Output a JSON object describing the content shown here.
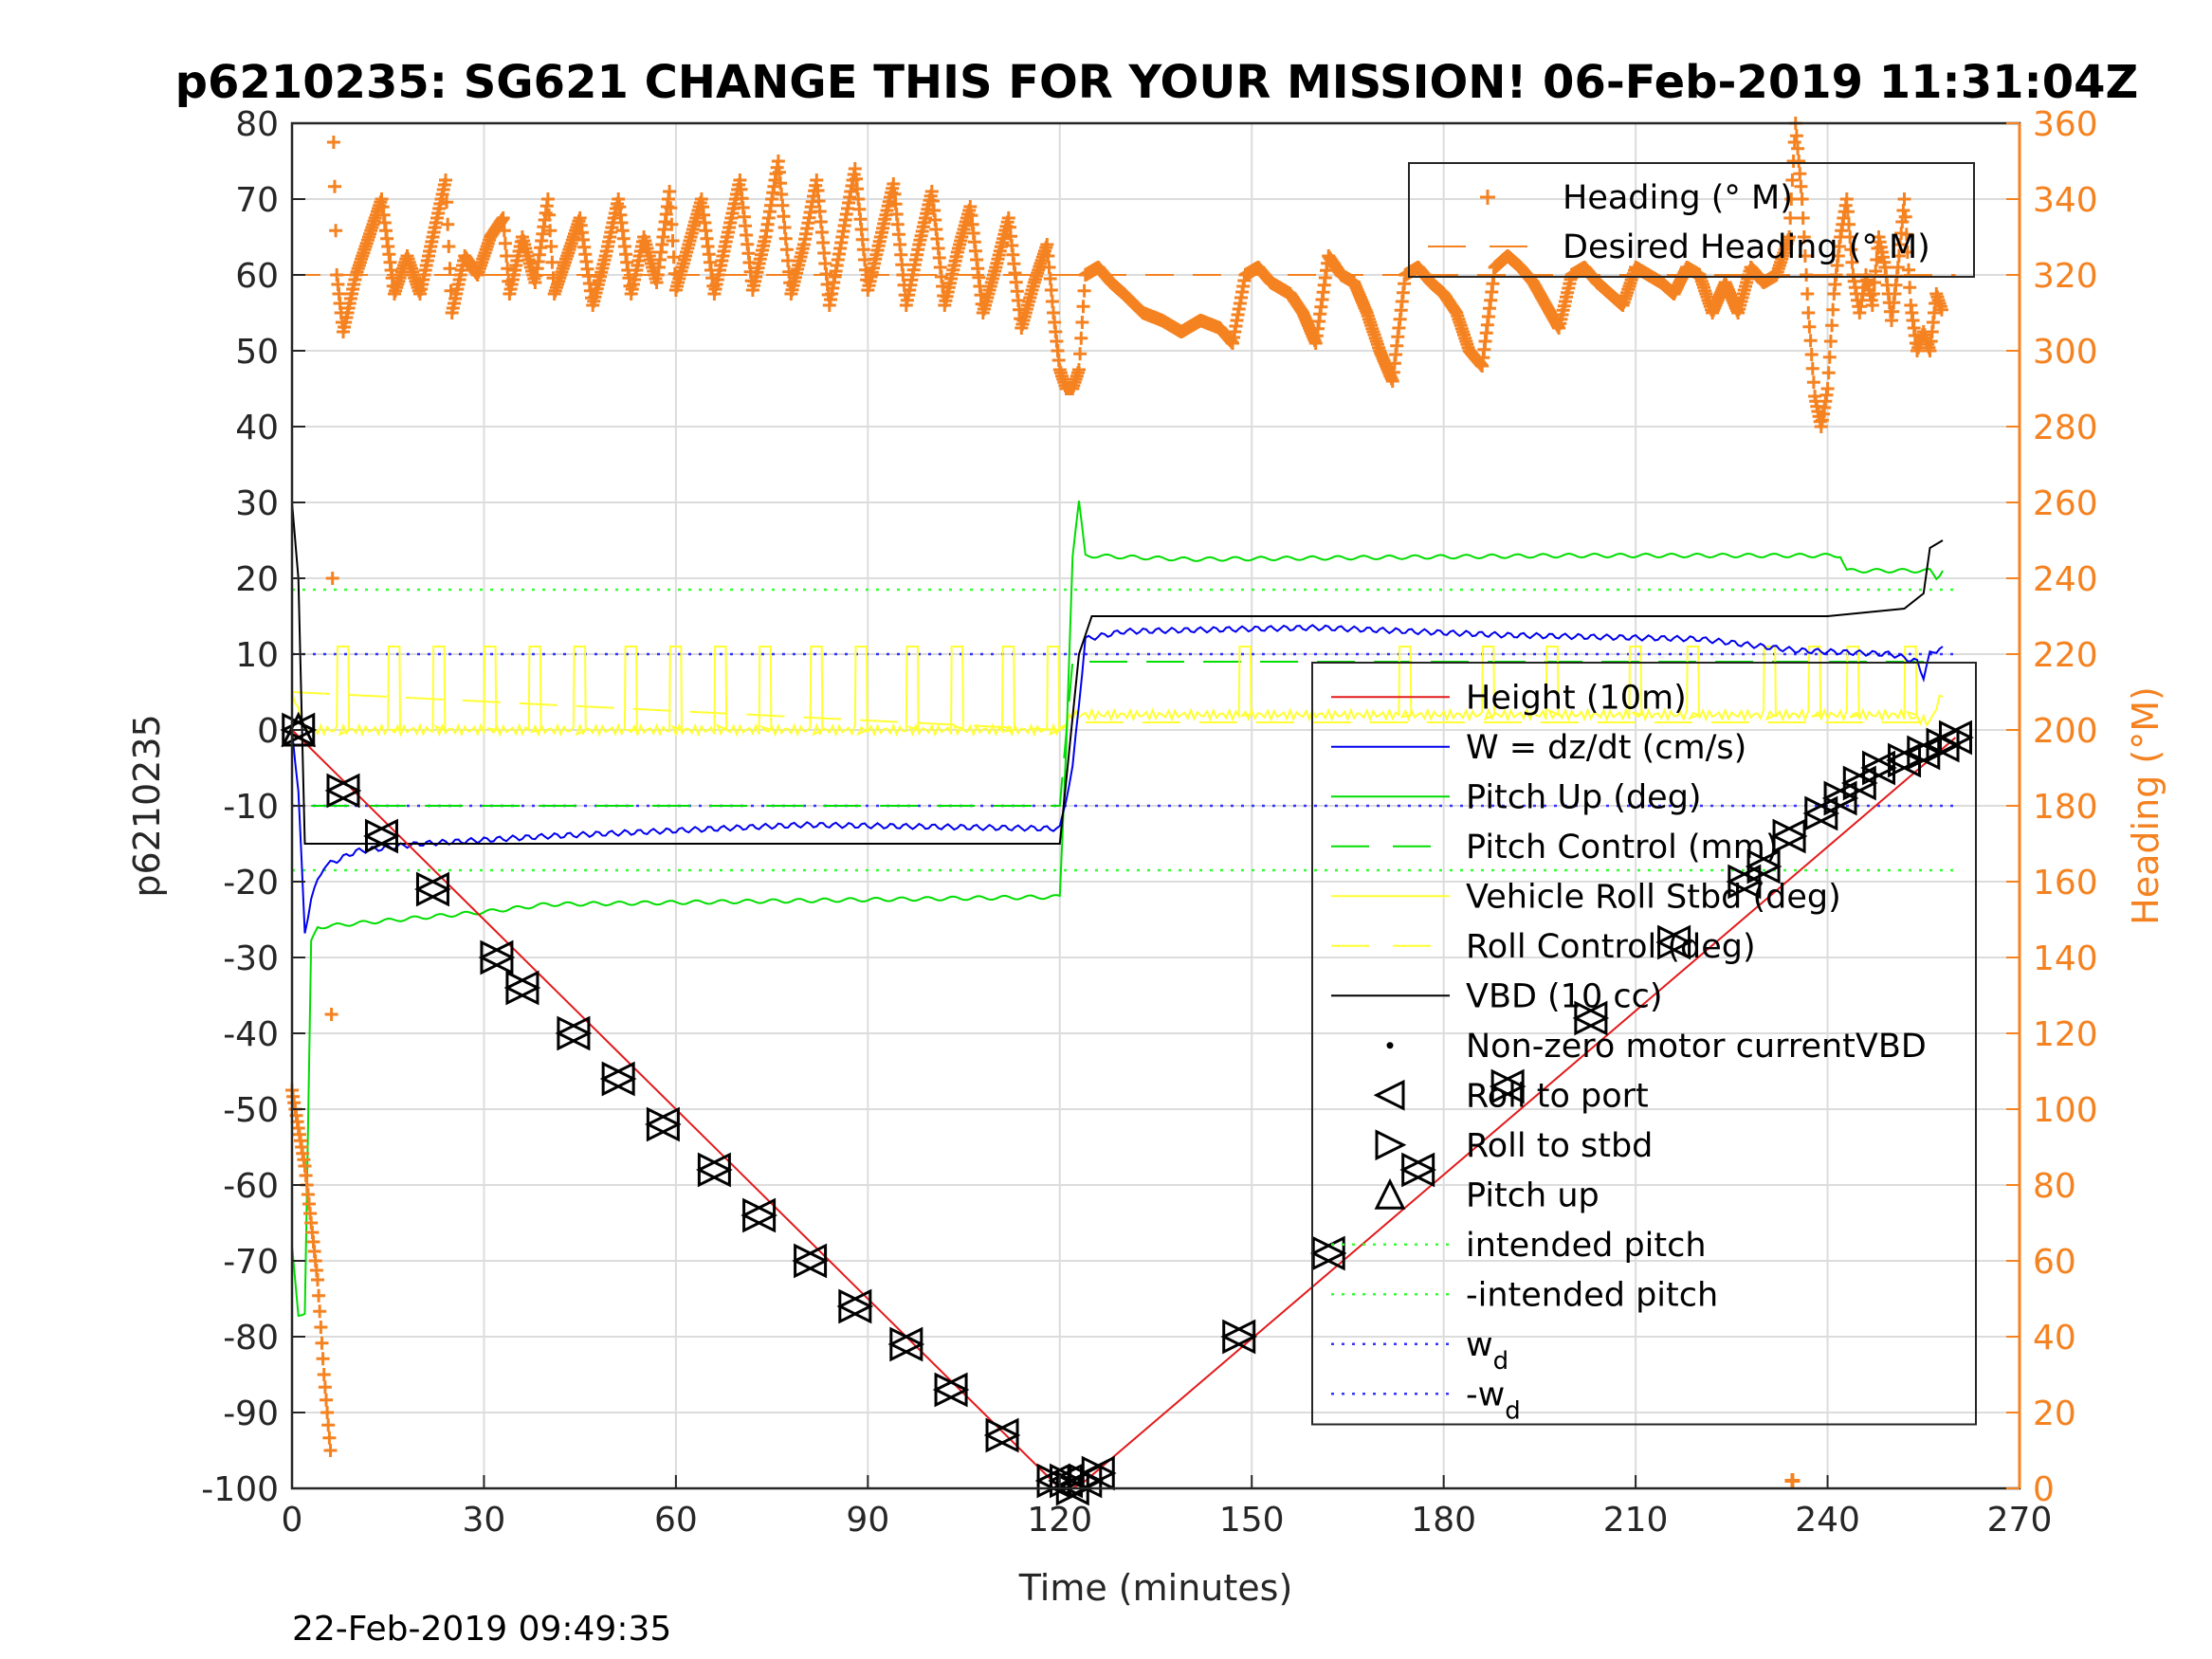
{
  "chart_data": {
    "type": "line",
    "title": "p6210235: SG621 CHANGE THIS FOR YOUR MISSION! 06-Feb-2019 11:31:04Z",
    "xlabel": "Time (minutes)",
    "ylabel_left": "p6210235",
    "ylabel_right": "Heading (°M)",
    "timestamp": "22-Feb-2019 09:49:35",
    "xlim": [
      0,
      270
    ],
    "ylim_left": [
      -100,
      80
    ],
    "ylim_right": [
      0,
      360
    ],
    "x_ticks": [
      0,
      30,
      60,
      90,
      120,
      150,
      180,
      210,
      240,
      270
    ],
    "y_ticks_left": [
      -100,
      -90,
      -80,
      -70,
      -60,
      -50,
      -40,
      -30,
      -20,
      -10,
      0,
      10,
      20,
      30,
      40,
      50,
      60,
      70,
      80
    ],
    "y_ticks_right": [
      0,
      20,
      40,
      60,
      80,
      100,
      120,
      140,
      160,
      180,
      200,
      220,
      240,
      260,
      280,
      300,
      320,
      340,
      360
    ],
    "grid": true,
    "colors": {
      "height": "#e31a1c",
      "w": "#0000ee",
      "pitch": "#00dd00",
      "roll": "#ffff33",
      "vbd": "#000000",
      "heading": "#f58220",
      "intended_pitch": "#33ff33",
      "w_d": "#3333ff"
    },
    "legend_top": [
      {
        "label": "Heading (° M)",
        "style": "plus",
        "color": "#f58220"
      },
      {
        "label": "Desired Heading (° M)",
        "style": "dash",
        "color": "#f58220"
      }
    ],
    "legend_main": [
      {
        "label": "Height (10m)",
        "style": "solid",
        "color": "#e31a1c"
      },
      {
        "label": "W = dz/dt (cm/s)",
        "style": "solid",
        "color": "#0000ee"
      },
      {
        "label": "Pitch Up (deg)",
        "style": "solid",
        "color": "#00dd00"
      },
      {
        "label": "Pitch Control (mm)",
        "style": "dash",
        "color": "#00dd00"
      },
      {
        "label": "Vehicle Roll Stbd (deg)",
        "style": "solid",
        "color": "#ffff33"
      },
      {
        "label": "Roll Control (deg)",
        "style": "dash",
        "color": "#ffff33"
      },
      {
        "label": "VBD (10 cc)",
        "style": "solid",
        "color": "#000000"
      },
      {
        "label": "Non-zero motor currentVBD",
        "style": "dot",
        "color": "#000000"
      },
      {
        "label": "Roll to port",
        "style": "tri-left",
        "color": "#000000"
      },
      {
        "label": "Roll to stbd",
        "style": "tri-right",
        "color": "#000000"
      },
      {
        "label": "Pitch up",
        "style": "tri-up",
        "color": "#000000"
      },
      {
        "label": "intended pitch",
        "style": "dotted",
        "color": "#33ff33"
      },
      {
        "label": "-intended pitch",
        "style": "dotted",
        "color": "#33ff33"
      },
      {
        "label": "w_d",
        "style": "dotted",
        "color": "#3333ff",
        "main": "w",
        "sub": "d"
      },
      {
        "label": "-w_d",
        "style": "dotted",
        "color": "#3333ff",
        "main": "-w",
        "sub": "d"
      }
    ],
    "reference_lines": {
      "intended_pitch": 18.5,
      "neg_intended_pitch": -18.5,
      "w_d": 10,
      "neg_w_d": -10,
      "desired_heading": 320
    },
    "series": {
      "height": [
        [
          0,
          0
        ],
        [
          120,
          -100
        ],
        [
          122,
          -100
        ],
        [
          124,
          -99
        ],
        [
          260,
          -1
        ]
      ],
      "w": [
        [
          0,
          0
        ],
        [
          1,
          -8
        ],
        [
          2,
          -27
        ],
        [
          3,
          -22
        ],
        [
          5,
          -18
        ],
        [
          10,
          -16
        ],
        [
          20,
          -15
        ],
        [
          40,
          -14
        ],
        [
          80,
          -12.5
        ],
        [
          119,
          -13
        ],
        [
          120,
          -13
        ],
        [
          122,
          -5
        ],
        [
          124,
          12
        ],
        [
          130,
          13
        ],
        [
          160,
          13.5
        ],
        [
          190,
          12.5
        ],
        [
          220,
          12
        ],
        [
          235,
          10.5
        ],
        [
          250,
          10
        ],
        [
          254,
          9
        ],
        [
          255,
          7
        ],
        [
          256,
          10
        ],
        [
          258,
          11
        ]
      ],
      "pitch": [
        [
          0,
          -68
        ],
        [
          1,
          -77
        ],
        [
          2,
          -77
        ],
        [
          3,
          -28
        ],
        [
          4,
          -26
        ],
        [
          10,
          -25.5
        ],
        [
          30,
          -24
        ],
        [
          40,
          -23
        ],
        [
          120,
          -22
        ],
        [
          121,
          -2
        ],
        [
          122,
          23
        ],
        [
          123,
          30
        ],
        [
          124,
          23
        ],
        [
          140,
          22.5
        ],
        [
          200,
          23
        ],
        [
          242,
          23
        ],
        [
          243,
          21
        ],
        [
          256,
          21
        ],
        [
          257,
          20
        ],
        [
          258,
          21
        ]
      ],
      "vbd": [
        [
          0,
          30
        ],
        [
          1,
          20
        ],
        [
          2,
          -15
        ],
        [
          119,
          -15
        ],
        [
          120,
          -15
        ],
        [
          123,
          10
        ],
        [
          125,
          15
        ],
        [
          240,
          15
        ],
        [
          252,
          16
        ],
        [
          255,
          18
        ],
        [
          256,
          24
        ],
        [
          258,
          25
        ]
      ],
      "roll_baseline": [
        [
          0,
          5
        ],
        [
          2,
          0
        ],
        [
          120,
          0
        ],
        [
          122,
          2
        ],
        [
          242,
          2
        ],
        [
          252,
          2
        ],
        [
          256,
          1
        ],
        [
          258,
          5
        ]
      ],
      "roll_spikes": [
        7,
        15,
        22,
        30,
        37,
        44,
        52,
        59,
        66,
        73,
        81,
        88,
        96,
        103,
        111,
        118,
        148,
        173,
        186,
        196,
        209,
        218,
        230,
        237,
        243,
        252
      ],
      "roll_control": [
        [
          0,
          5
        ],
        [
          120,
          0
        ],
        [
          122,
          1
        ],
        [
          258,
          1
        ]
      ],
      "pitch_control": [
        [
          3,
          -10
        ],
        [
          120,
          -10
        ],
        [
          122,
          9
        ],
        [
          258,
          9
        ]
      ],
      "markers": [
        [
          1,
          0
        ],
        [
          8,
          -8
        ],
        [
          14,
          -14
        ],
        [
          22,
          -21
        ],
        [
          32,
          -30
        ],
        [
          36,
          -34
        ],
        [
          44,
          -40
        ],
        [
          51,
          -46
        ],
        [
          58,
          -52
        ],
        [
          66,
          -58
        ],
        [
          73,
          -64
        ],
        [
          81,
          -70
        ],
        [
          88,
          -76
        ],
        [
          96,
          -81
        ],
        [
          103,
          -87
        ],
        [
          111,
          -93
        ],
        [
          119,
          -99
        ],
        [
          121,
          -99
        ],
        [
          122,
          -100
        ],
        [
          124,
          -99
        ],
        [
          126,
          -98
        ],
        [
          148,
          -80
        ],
        [
          162,
          -69
        ],
        [
          176,
          -58
        ],
        [
          190,
          -47
        ],
        [
          203,
          -38
        ],
        [
          216,
          -28
        ],
        [
          227,
          -20
        ],
        [
          230,
          -18
        ],
        [
          234,
          -14
        ],
        [
          239,
          -11
        ],
        [
          242,
          -9
        ],
        [
          245,
          -7
        ],
        [
          248,
          -5
        ],
        [
          252,
          -4
        ],
        [
          255,
          -3
        ],
        [
          258,
          -2
        ],
        [
          260,
          -1
        ]
      ],
      "heading": [
        [
          0,
          105
        ],
        [
          1,
          95
        ],
        [
          2,
          85
        ],
        [
          3,
          70
        ],
        [
          4,
          55
        ],
        [
          5,
          30
        ],
        [
          6,
          10
        ],
        [
          6.5,
          355
        ],
        [
          7,
          320
        ],
        [
          8,
          305
        ],
        [
          10,
          320
        ],
        [
          12,
          330
        ],
        [
          14,
          340
        ],
        [
          16,
          315
        ],
        [
          18,
          325
        ],
        [
          20,
          315
        ],
        [
          22,
          330
        ],
        [
          24,
          345
        ],
        [
          25,
          310
        ],
        [
          27,
          325
        ],
        [
          29,
          320
        ],
        [
          31,
          330
        ],
        [
          33,
          335
        ],
        [
          34,
          315
        ],
        [
          36,
          330
        ],
        [
          38,
          318
        ],
        [
          40,
          340
        ],
        [
          41,
          315
        ],
        [
          43,
          325
        ],
        [
          45,
          335
        ],
        [
          47,
          312
        ],
        [
          49,
          325
        ],
        [
          51,
          340
        ],
        [
          53,
          315
        ],
        [
          55,
          330
        ],
        [
          57,
          318
        ],
        [
          59,
          342
        ],
        [
          60,
          316
        ],
        [
          62,
          328
        ],
        [
          64,
          340
        ],
        [
          66,
          315
        ],
        [
          68,
          330
        ],
        [
          70,
          345
        ],
        [
          72,
          316
        ],
        [
          74,
          330
        ],
        [
          76,
          350
        ],
        [
          78,
          315
        ],
        [
          80,
          328
        ],
        [
          82,
          345
        ],
        [
          84,
          312
        ],
        [
          86,
          330
        ],
        [
          88,
          348
        ],
        [
          90,
          316
        ],
        [
          92,
          330
        ],
        [
          94,
          344
        ],
        [
          96,
          312
        ],
        [
          98,
          328
        ],
        [
          100,
          342
        ],
        [
          102,
          312
        ],
        [
          104,
          326
        ],
        [
          106,
          338
        ],
        [
          108,
          310
        ],
        [
          110,
          322
        ],
        [
          112,
          335
        ],
        [
          114,
          306
        ],
        [
          116,
          318
        ],
        [
          118,
          328
        ],
        [
          119,
          310
        ],
        [
          120,
          295
        ],
        [
          121,
          290
        ],
        [
          122,
          290
        ],
        [
          123,
          295
        ],
        [
          124,
          320
        ],
        [
          126,
          322
        ],
        [
          128,
          318
        ],
        [
          130,
          315
        ],
        [
          133,
          310
        ],
        [
          136,
          308
        ],
        [
          139,
          305
        ],
        [
          142,
          308
        ],
        [
          145,
          306
        ],
        [
          147,
          302
        ],
        [
          149,
          320
        ],
        [
          151,
          322
        ],
        [
          153,
          318
        ],
        [
          156,
          315
        ],
        [
          158,
          310
        ],
        [
          160,
          302
        ],
        [
          162,
          325
        ],
        [
          164,
          320
        ],
        [
          166,
          318
        ],
        [
          168,
          310
        ],
        [
          170,
          300
        ],
        [
          172,
          292
        ],
        [
          174,
          320
        ],
        [
          176,
          322
        ],
        [
          178,
          318
        ],
        [
          180,
          315
        ],
        [
          182,
          310
        ],
        [
          184,
          300
        ],
        [
          186,
          296
        ],
        [
          188,
          322
        ],
        [
          190,
          325
        ],
        [
          192,
          322
        ],
        [
          194,
          318
        ],
        [
          196,
          312
        ],
        [
          198,
          306
        ],
        [
          200,
          320
        ],
        [
          202,
          322
        ],
        [
          204,
          318
        ],
        [
          206,
          315
        ],
        [
          208,
          312
        ],
        [
          210,
          322
        ],
        [
          212,
          320
        ],
        [
          214,
          318
        ],
        [
          216,
          315
        ],
        [
          218,
          322
        ],
        [
          220,
          320
        ],
        [
          222,
          310
        ],
        [
          224,
          318
        ],
        [
          226,
          310
        ],
        [
          228,
          322
        ],
        [
          230,
          318
        ],
        [
          232,
          320
        ],
        [
          234,
          330
        ],
        [
          235,
          360
        ],
        [
          236,
          340
        ],
        [
          237,
          310
        ],
        [
          238,
          288
        ],
        [
          239,
          280
        ],
        [
          240,
          290
        ],
        [
          241,
          315
        ],
        [
          242,
          330
        ],
        [
          243,
          340
        ],
        [
          244,
          320
        ],
        [
          245,
          310
        ],
        [
          246,
          320
        ],
        [
          247,
          312
        ],
        [
          248,
          330
        ],
        [
          249,
          322
        ],
        [
          250,
          308
        ],
        [
          251,
          322
        ],
        [
          252,
          340
        ],
        [
          253,
          312
        ],
        [
          254,
          300
        ],
        [
          255,
          305
        ],
        [
          256,
          300
        ],
        [
          257,
          315
        ],
        [
          258,
          310
        ]
      ]
    }
  }
}
